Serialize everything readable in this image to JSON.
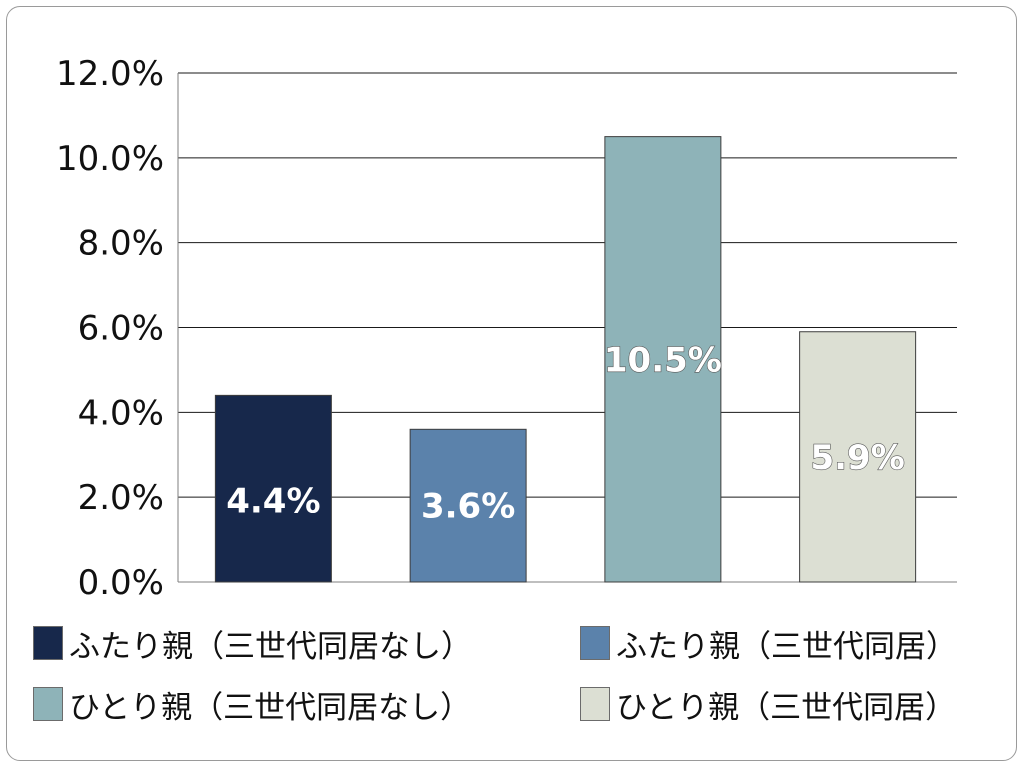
{
  "chart_data": {
    "type": "bar",
    "categories": [
      "ふたり親（三世代同居なし）",
      "ふたり親（三世代同居）",
      "ひとり親（三世代同居なし）",
      "ひとり親（三世代同居）"
    ],
    "values": [
      4.4,
      3.6,
      10.5,
      5.9
    ],
    "value_labels": [
      "4.4%",
      "3.6%",
      "10.5%",
      "5.9%"
    ],
    "colors": [
      "#17284b",
      "#5b82ab",
      "#8eb3b8",
      "#dcdfd3"
    ],
    "y_ticks": [
      "0.0%",
      "2.0%",
      "4.0%",
      "6.0%",
      "8.0%",
      "10.0%",
      "12.0%"
    ],
    "ylim": [
      0,
      12
    ],
    "title": "",
    "xlabel": "",
    "ylabel": "",
    "grid": true,
    "legend_position": "bottom"
  }
}
